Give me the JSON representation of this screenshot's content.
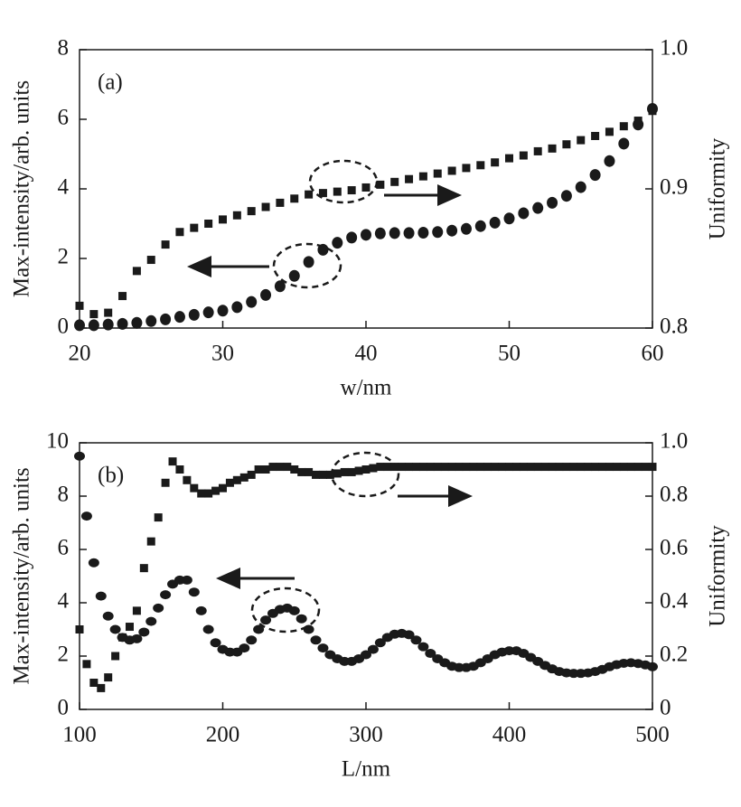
{
  "chart_data": [
    {
      "type": "scatter",
      "annotation": "(a)",
      "xlabel": "w/nm",
      "ylabel": "Max-intensity/arb. units",
      "y2label": "Uniformity",
      "xlim": [
        20,
        60
      ],
      "xticks": [
        20,
        30,
        40,
        50,
        60
      ],
      "ylim": [
        0,
        8
      ],
      "yticks": [
        0,
        2,
        4,
        6,
        8
      ],
      "y2lim": [
        0.8,
        1
      ],
      "y2ticks": [
        0.8,
        0.9,
        {
          "value": 1,
          "label": "1.0"
        }
      ],
      "x": [
        20,
        21,
        22,
        23,
        24,
        25,
        26,
        27,
        28,
        29,
        30,
        31,
        32,
        33,
        34,
        35,
        36,
        37,
        38,
        39,
        40,
        41,
        42,
        43,
        44,
        45,
        46,
        47,
        48,
        49,
        50,
        51,
        52,
        53,
        54,
        55,
        56,
        57,
        58,
        59,
        60
      ],
      "series": [
        {
          "marker": "circle",
          "color": "#1a1a1a",
          "values": [
            0.08,
            0.08,
            0.1,
            0.12,
            0.15,
            0.2,
            0.25,
            0.32,
            0.38,
            0.45,
            0.5,
            0.6,
            0.75,
            0.95,
            1.2,
            1.5,
            1.9,
            2.25,
            2.45,
            2.6,
            2.68,
            2.72,
            2.73,
            2.73,
            2.74,
            2.76,
            2.8,
            2.85,
            2.93,
            3.03,
            3.15,
            3.3,
            3.45,
            3.6,
            3.8,
            4.05,
            4.4,
            4.8,
            5.3,
            5.85,
            6.3
          ]
        },
        {
          "marker": "square",
          "color": "#1a1a1a",
          "axis": "y2",
          "values": [
            0.816,
            0.81,
            0.811,
            0.823,
            0.841,
            0.849,
            0.86,
            0.869,
            0.872,
            0.875,
            0.878,
            0.881,
            0.884,
            0.887,
            0.89,
            0.893,
            0.896,
            0.897,
            0.898,
            0.899,
            0.901,
            0.903,
            0.905,
            0.907,
            0.909,
            0.911,
            0.913,
            0.915,
            0.917,
            0.919,
            0.922,
            0.924,
            0.927,
            0.929,
            0.932,
            0.935,
            0.938,
            0.941,
            0.945,
            0.949,
            0.956
          ]
        }
      ]
    },
    {
      "type": "scatter",
      "annotation": "(b)",
      "xlabel": "L/nm",
      "ylabel": "Max-intensity/arb. units",
      "y2label": "Uniformity",
      "xlim": [
        100,
        500
      ],
      "xticks": [
        100,
        200,
        300,
        400,
        500
      ],
      "ylim": [
        0,
        10
      ],
      "yticks": [
        0,
        2,
        4,
        6,
        8,
        10
      ],
      "y2lim": [
        0,
        1
      ],
      "y2ticks": [
        0,
        0.2,
        0.4,
        0.6,
        0.8,
        {
          "value": 1,
          "label": "1.0"
        }
      ],
      "x": [
        100,
        105,
        110,
        115,
        120,
        125,
        130,
        135,
        140,
        145,
        150,
        155,
        160,
        165,
        170,
        175,
        180,
        185,
        190,
        195,
        200,
        205,
        210,
        215,
        220,
        225,
        230,
        235,
        240,
        245,
        250,
        255,
        260,
        265,
        270,
        275,
        280,
        285,
        290,
        295,
        300,
        305,
        310,
        315,
        320,
        325,
        330,
        335,
        340,
        345,
        350,
        355,
        360,
        365,
        370,
        375,
        380,
        385,
        390,
        395,
        400,
        405,
        410,
        415,
        420,
        425,
        430,
        435,
        440,
        445,
        450,
        455,
        460,
        465,
        470,
        475,
        480,
        485,
        490,
        495,
        500
      ],
      "series": [
        {
          "marker": "circle",
          "color": "#1a1a1a",
          "values": [
            9.5,
            7.25,
            5.5,
            4.25,
            3.5,
            3.0,
            2.7,
            2.6,
            2.65,
            2.9,
            3.3,
            3.8,
            4.3,
            4.7,
            4.85,
            4.85,
            4.4,
            3.7,
            3.0,
            2.5,
            2.25,
            2.15,
            2.15,
            2.3,
            2.6,
            3.0,
            3.35,
            3.6,
            3.75,
            3.8,
            3.7,
            3.4,
            3.0,
            2.6,
            2.3,
            2.05,
            1.9,
            1.8,
            1.8,
            1.9,
            2.05,
            2.25,
            2.5,
            2.7,
            2.82,
            2.85,
            2.8,
            2.6,
            2.35,
            2.1,
            1.9,
            1.75,
            1.62,
            1.57,
            1.57,
            1.62,
            1.75,
            1.9,
            2.05,
            2.15,
            2.2,
            2.2,
            2.1,
            1.95,
            1.8,
            1.65,
            1.52,
            1.42,
            1.37,
            1.35,
            1.35,
            1.37,
            1.42,
            1.5,
            1.6,
            1.68,
            1.73,
            1.75,
            1.72,
            1.67,
            1.6
          ]
        },
        {
          "marker": "square",
          "color": "#1a1a1a",
          "axis": "y2",
          "values": [
            0.3,
            0.17,
            0.1,
            0.08,
            0.12,
            0.2,
            0.27,
            0.31,
            0.37,
            0.53,
            0.63,
            0.72,
            0.85,
            0.93,
            0.9,
            0.86,
            0.83,
            0.81,
            0.81,
            0.82,
            0.83,
            0.85,
            0.86,
            0.87,
            0.88,
            0.9,
            0.9,
            0.91,
            0.91,
            0.91,
            0.9,
            0.89,
            0.89,
            0.88,
            0.88,
            0.88,
            0.885,
            0.89,
            0.89,
            0.895,
            0.9,
            0.905,
            0.91,
            0.91,
            0.91,
            0.91,
            0.91,
            0.91,
            0.91,
            0.91,
            0.91,
            0.91,
            0.91,
            0.91,
            0.91,
            0.91,
            0.91,
            0.91,
            0.91,
            0.91,
            0.91,
            0.91,
            0.91,
            0.91,
            0.91,
            0.91,
            0.91,
            0.91,
            0.91,
            0.91,
            0.91,
            0.91,
            0.91,
            0.91,
            0.91,
            0.91,
            0.91,
            0.91,
            0.91,
            0.91,
            0.91
          ]
        }
      ]
    }
  ]
}
